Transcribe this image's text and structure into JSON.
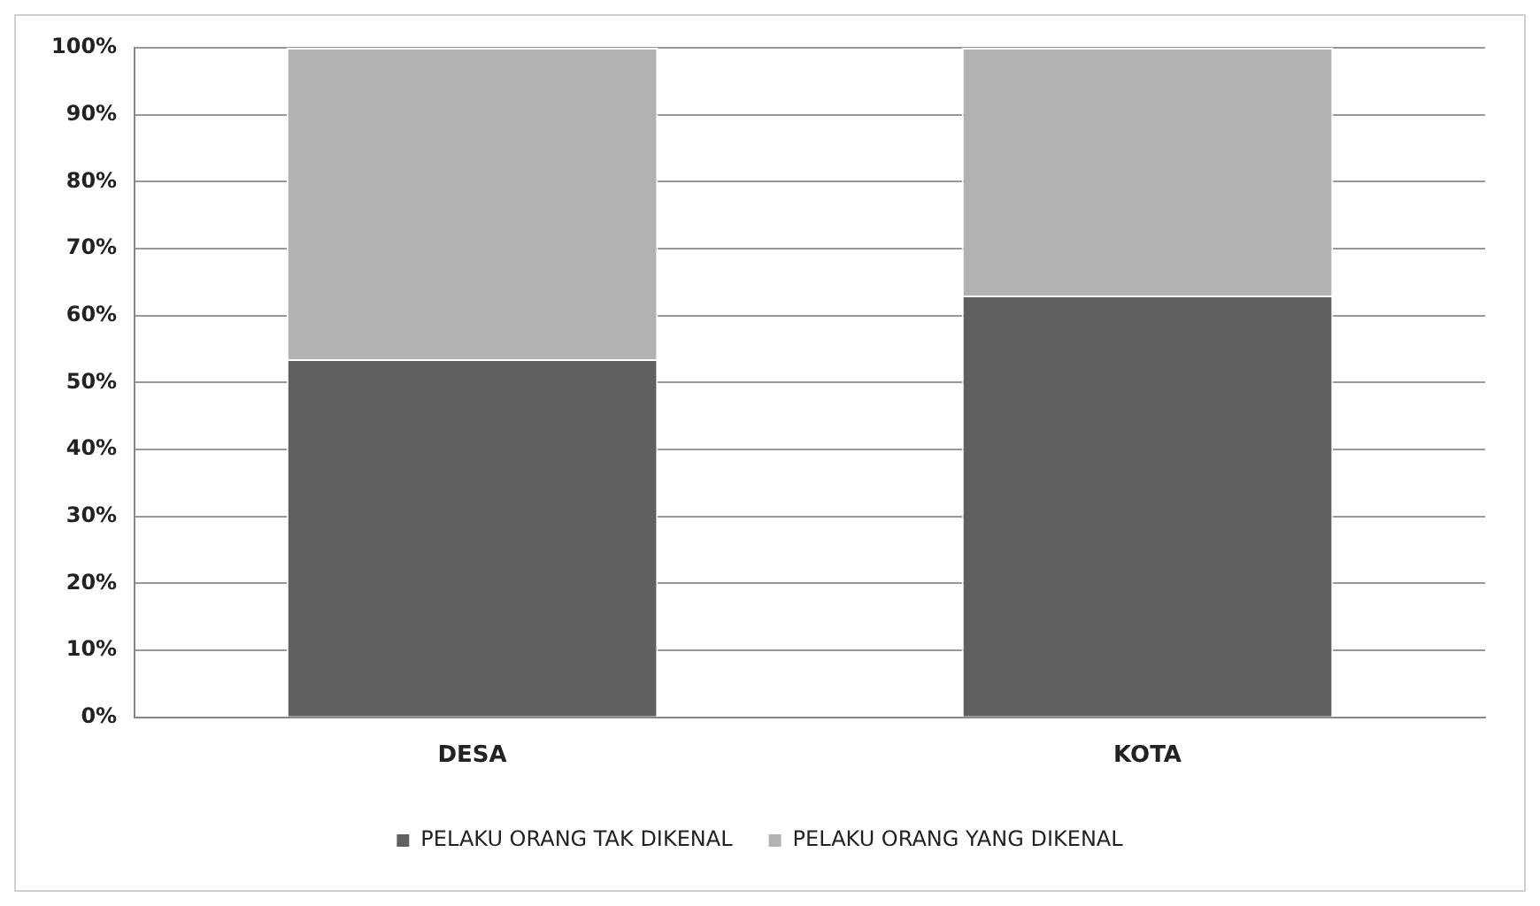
{
  "chart_data": {
    "type": "bar",
    "stacked": true,
    "categories": [
      "DESA",
      "KOTA"
    ],
    "series": [
      {
        "name": "PELAKU ORANG TAK DIKENAL",
        "color": "#606060",
        "values": [
          53.5,
          63
        ]
      },
      {
        "name": "PELAKU ORANG YANG DIKENAL",
        "color": "#b2b2b2",
        "values": [
          46.5,
          37
        ]
      }
    ],
    "ylim": [
      0,
      100
    ],
    "yticks": [
      {
        "value": 0,
        "label": "0%"
      },
      {
        "value": 10,
        "label": "10%"
      },
      {
        "value": 20,
        "label": "20%"
      },
      {
        "value": 30,
        "label": "30%"
      },
      {
        "value": 40,
        "label": "40%"
      },
      {
        "value": 50,
        "label": "50%"
      },
      {
        "value": 60,
        "label": "60%"
      },
      {
        "value": 70,
        "label": "70%"
      },
      {
        "value": 80,
        "label": "80%"
      },
      {
        "value": 90,
        "label": "90%"
      },
      {
        "value": 100,
        "label": "100%"
      }
    ],
    "grid": "y",
    "legend": "bottom"
  }
}
